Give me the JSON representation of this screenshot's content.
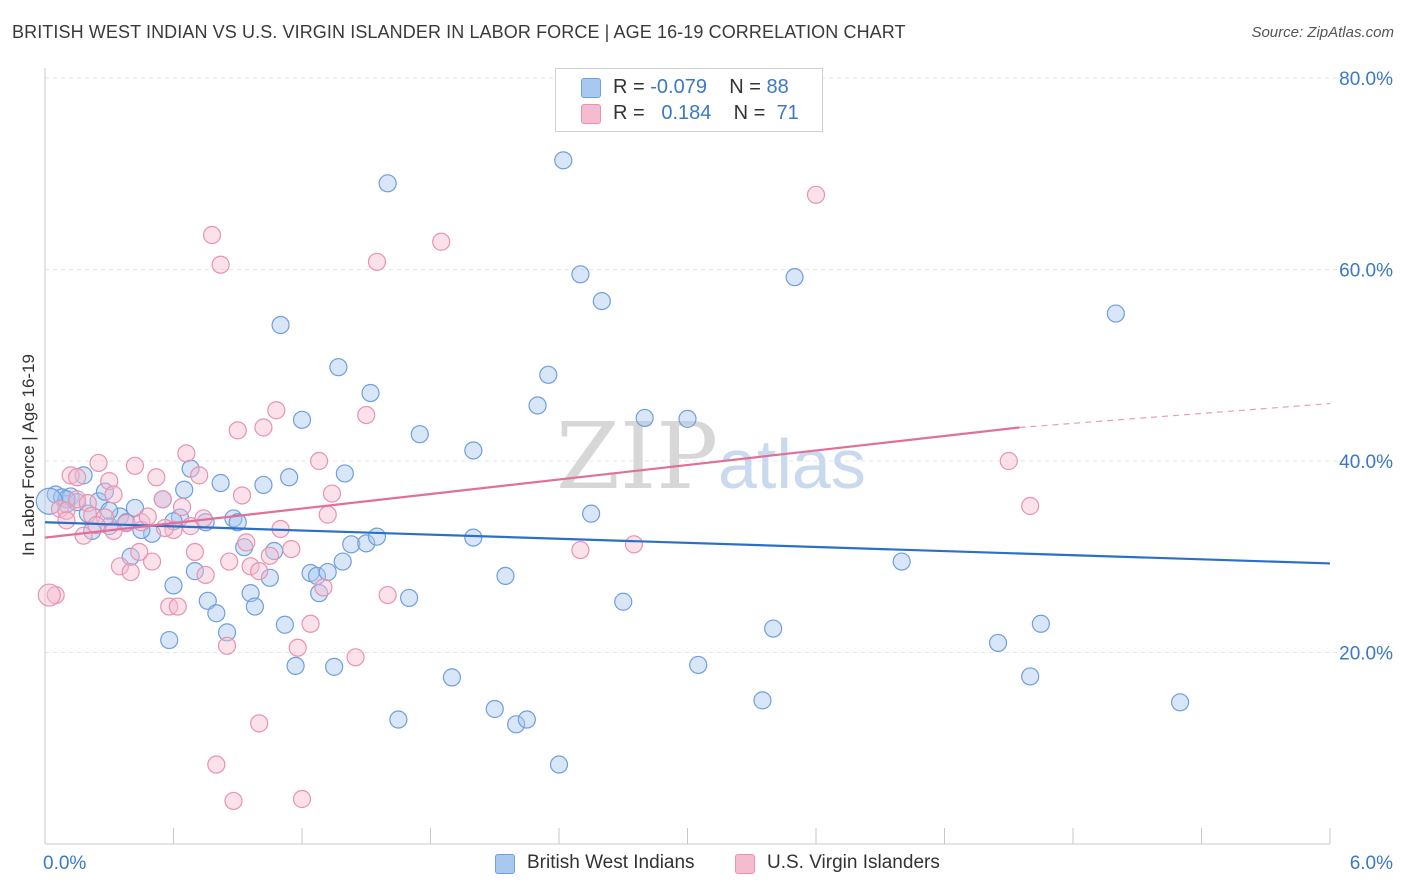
{
  "title": "BRITISH WEST INDIAN VS U.S. VIRGIN ISLANDER IN LABOR FORCE | AGE 16-19 CORRELATION CHART",
  "source": "Source: ZipAtlas.com",
  "watermark": {
    "zip": "ZIP",
    "atlas": "atlas"
  },
  "colors": {
    "blue_fill": "#a9c8ef",
    "blue_stroke": "#6f9fdc",
    "blue_line": "#2a6fc9",
    "pink_fill": "#f5bcd0",
    "pink_stroke": "#e893b0",
    "pink_line": "#e0709a",
    "tick_label": "#3b78c9",
    "grid": "#e6e6e6"
  },
  "legend": {
    "rows": [
      {
        "r_label": "R =",
        "r_value": "-0.079",
        "n_label": "N =",
        "n_value": "88",
        "color": "#a9c8ef",
        "stroke": "#6f9fdc"
      },
      {
        "r_label": "R =",
        "r_value": "0.184",
        "n_label": "N =",
        "n_value": "71",
        "color": "#f5bcd0",
        "stroke": "#e893b0"
      }
    ]
  },
  "bottom_legend": [
    {
      "label": "British West Indians",
      "color": "#a9c8ef",
      "stroke": "#6f9fdc"
    },
    {
      "label": "U.S. Virgin Islanders",
      "color": "#f5bcd0",
      "stroke": "#e893b0"
    }
  ],
  "chart_data": {
    "type": "scatter",
    "title": "BRITISH WEST INDIAN VS U.S. VIRGIN ISLANDER IN LABOR FORCE | AGE 16-19 CORRELATION CHART",
    "xlabel": "",
    "ylabel": "In Labor Force | Age 16-19",
    "xlim": [
      0,
      6
    ],
    "ylim": [
      0,
      80
    ],
    "x_tick_labels": [
      {
        "value": 0,
        "label": "0.0%"
      },
      {
        "value": 6,
        "label": "6.0%"
      }
    ],
    "y_tick_labels": [
      {
        "value": 20,
        "label": "20.0%"
      },
      {
        "value": 40,
        "label": "40.0%"
      },
      {
        "value": 60,
        "label": "60.0%"
      },
      {
        "value": 80,
        "label": "80.0%"
      }
    ],
    "series": [
      {
        "name": "British West Indians",
        "R": -0.079,
        "N": 88,
        "trend": {
          "x0": 0,
          "y0": 33.6,
          "x1": 6,
          "y1": 29.3
        },
        "points": [
          [
            0.05,
            36.5
          ],
          [
            0.08,
            36.2
          ],
          [
            0.1,
            35.5
          ],
          [
            0.12,
            36.3
          ],
          [
            0.15,
            35.7
          ],
          [
            0.18,
            38.5
          ],
          [
            0.2,
            34.5
          ],
          [
            0.22,
            32.7
          ],
          [
            0.25,
            35.8
          ],
          [
            0.28,
            36.8
          ],
          [
            0.3,
            33.2
          ],
          [
            0.35,
            34.2
          ],
          [
            0.38,
            33.6
          ],
          [
            0.4,
            30.0
          ],
          [
            0.42,
            35.1
          ],
          [
            0.5,
            32.4
          ],
          [
            0.55,
            36.0
          ],
          [
            0.58,
            21.3
          ],
          [
            0.6,
            27.0
          ],
          [
            0.63,
            34.1
          ],
          [
            0.65,
            37.0
          ],
          [
            0.68,
            39.2
          ],
          [
            0.7,
            28.5
          ],
          [
            0.75,
            33.6
          ],
          [
            0.76,
            25.4
          ],
          [
            0.8,
            24.1
          ],
          [
            0.82,
            37.7
          ],
          [
            0.85,
            22.1
          ],
          [
            0.88,
            34.0
          ],
          [
            0.9,
            33.6
          ],
          [
            0.93,
            31.0
          ],
          [
            0.96,
            26.2
          ],
          [
            0.98,
            24.8
          ],
          [
            1.02,
            37.5
          ],
          [
            1.05,
            27.8
          ],
          [
            1.07,
            30.6
          ],
          [
            1.1,
            54.2
          ],
          [
            1.12,
            22.9
          ],
          [
            1.14,
            38.3
          ],
          [
            1.17,
            18.6
          ],
          [
            1.2,
            44.3
          ],
          [
            1.24,
            28.3
          ],
          [
            1.27,
            28.0
          ],
          [
            1.28,
            26.2
          ],
          [
            1.32,
            28.4
          ],
          [
            1.35,
            18.5
          ],
          [
            1.37,
            49.8
          ],
          [
            1.39,
            29.5
          ],
          [
            1.4,
            38.7
          ],
          [
            1.43,
            31.3
          ],
          [
            1.5,
            31.4
          ],
          [
            1.52,
            47.1
          ],
          [
            1.55,
            32.1
          ],
          [
            1.6,
            69.0
          ],
          [
            1.65,
            13.0
          ],
          [
            1.7,
            25.7
          ],
          [
            1.75,
            42.8
          ],
          [
            1.9,
            17.4
          ],
          [
            2.0,
            32.0
          ],
          [
            2.0,
            41.1
          ],
          [
            2.1,
            14.1
          ],
          [
            2.15,
            28.0
          ],
          [
            2.2,
            12.5
          ],
          [
            2.25,
            13.0
          ],
          [
            2.3,
            45.8
          ],
          [
            2.35,
            49.0
          ],
          [
            2.4,
            8.3
          ],
          [
            2.42,
            71.4
          ],
          [
            2.5,
            59.5
          ],
          [
            2.55,
            34.5
          ],
          [
            2.6,
            56.7
          ],
          [
            2.7,
            25.3
          ],
          [
            2.8,
            44.5
          ],
          [
            3.0,
            44.4
          ],
          [
            3.05,
            18.7
          ],
          [
            3.35,
            15.0
          ],
          [
            3.4,
            22.5
          ],
          [
            3.5,
            59.2
          ],
          [
            4.0,
            29.5
          ],
          [
            4.45,
            21.0
          ],
          [
            4.6,
            17.5
          ],
          [
            4.65,
            23.0
          ],
          [
            5.0,
            55.4
          ],
          [
            5.3,
            14.8
          ],
          [
            0.1,
            36.0
          ],
          [
            0.6,
            33.7
          ],
          [
            0.45,
            32.8
          ],
          [
            0.3,
            34.8
          ]
        ]
      },
      {
        "name": "U.S. Virgin Islanders",
        "R": 0.184,
        "N": 71,
        "trend": {
          "x0": 0,
          "y0": 32.0,
          "x1": 4.55,
          "y1": 43.5
        },
        "trend_dashed": {
          "x0": 4.55,
          "y0": 43.5,
          "x1": 6,
          "y1": 46.0
        },
        "points": [
          [
            0.05,
            26.0
          ],
          [
            0.07,
            35.0
          ],
          [
            0.1,
            34.8
          ],
          [
            0.12,
            38.5
          ],
          [
            0.15,
            36.0
          ],
          [
            0.18,
            32.2
          ],
          [
            0.2,
            35.6
          ],
          [
            0.22,
            34.3
          ],
          [
            0.25,
            39.8
          ],
          [
            0.28,
            34.1
          ],
          [
            0.3,
            37.9
          ],
          [
            0.32,
            36.5
          ],
          [
            0.35,
            29.0
          ],
          [
            0.38,
            33.5
          ],
          [
            0.4,
            28.4
          ],
          [
            0.42,
            39.5
          ],
          [
            0.45,
            33.6
          ],
          [
            0.48,
            34.2
          ],
          [
            0.5,
            29.5
          ],
          [
            0.52,
            38.3
          ],
          [
            0.55,
            36.0
          ],
          [
            0.58,
            24.8
          ],
          [
            0.6,
            32.8
          ],
          [
            0.62,
            24.8
          ],
          [
            0.66,
            40.8
          ],
          [
            0.68,
            33.2
          ],
          [
            0.7,
            30.5
          ],
          [
            0.72,
            38.5
          ],
          [
            0.75,
            28.1
          ],
          [
            0.78,
            63.6
          ],
          [
            0.8,
            8.3
          ],
          [
            0.82,
            60.5
          ],
          [
            0.85,
            20.7
          ],
          [
            0.88,
            4.5
          ],
          [
            0.9,
            43.2
          ],
          [
            0.92,
            36.4
          ],
          [
            0.94,
            31.5
          ],
          [
            0.96,
            29.0
          ],
          [
            1.0,
            12.6
          ],
          [
            1.02,
            43.5
          ],
          [
            1.05,
            30.1
          ],
          [
            1.08,
            45.3
          ],
          [
            1.1,
            32.9
          ],
          [
            1.15,
            30.8
          ],
          [
            1.18,
            20.5
          ],
          [
            1.2,
            4.7
          ],
          [
            1.24,
            23.0
          ],
          [
            1.28,
            40.0
          ],
          [
            1.3,
            26.8
          ],
          [
            1.32,
            34.4
          ],
          [
            1.34,
            36.6
          ],
          [
            1.45,
            19.5
          ],
          [
            1.5,
            44.8
          ],
          [
            1.55,
            60.8
          ],
          [
            1.6,
            26.0
          ],
          [
            1.85,
            62.9
          ],
          [
            2.5,
            30.7
          ],
          [
            2.75,
            31.3
          ],
          [
            3.6,
            67.8
          ],
          [
            4.5,
            40.0
          ],
          [
            4.6,
            35.3
          ],
          [
            0.15,
            38.3
          ],
          [
            0.24,
            33.3
          ],
          [
            0.32,
            32.7
          ],
          [
            0.44,
            30.5
          ],
          [
            0.56,
            33.0
          ],
          [
            0.64,
            35.2
          ],
          [
            0.74,
            34.0
          ],
          [
            0.86,
            29.5
          ],
          [
            1.0,
            28.5
          ],
          [
            0.1,
            33.8
          ]
        ]
      }
    ]
  }
}
